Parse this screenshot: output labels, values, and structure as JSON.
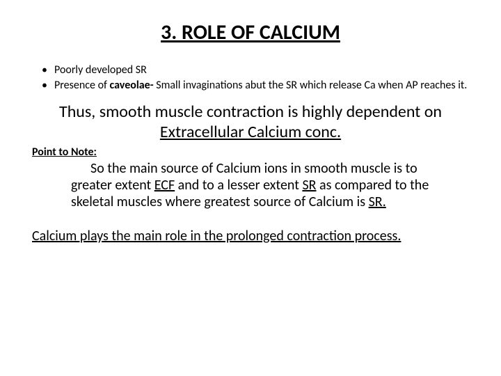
{
  "title": {
    "text": "3. ROLE OF CALCIUM",
    "fontsize": 30
  },
  "bullets": {
    "fontsize": 16,
    "items": [
      {
        "text": "Poorly developed SR"
      },
      {
        "pre": "Presence of ",
        "bold": "caveolae-",
        "post": " Small invaginations abut the SR which release Ca when AP reaches it."
      }
    ]
  },
  "statement": {
    "fontsize": 24,
    "pre": "Thus, smooth muscle contraction is highly dependent on  ",
    "underlined": "Extracellular Calcium conc."
  },
  "point_label": {
    "text": "Point to Note:",
    "fontsize": 16
  },
  "note": {
    "fontsize": 20,
    "p1": "So the main source of Calcium ions in smooth muscle is to greater extent ",
    "u1": "ECF",
    "p2": " and to a lesser extent ",
    "u2": "SR",
    "p3": " as compared to the skeletal muscles where greatest source of Calcium is ",
    "u3": "SR.",
    "p4": ""
  },
  "final": {
    "text": "Calcium plays the main role in the prolonged contraction process. ",
    "fontsize": 20
  },
  "colors": {
    "text": "#000000",
    "background": "#ffffff"
  }
}
